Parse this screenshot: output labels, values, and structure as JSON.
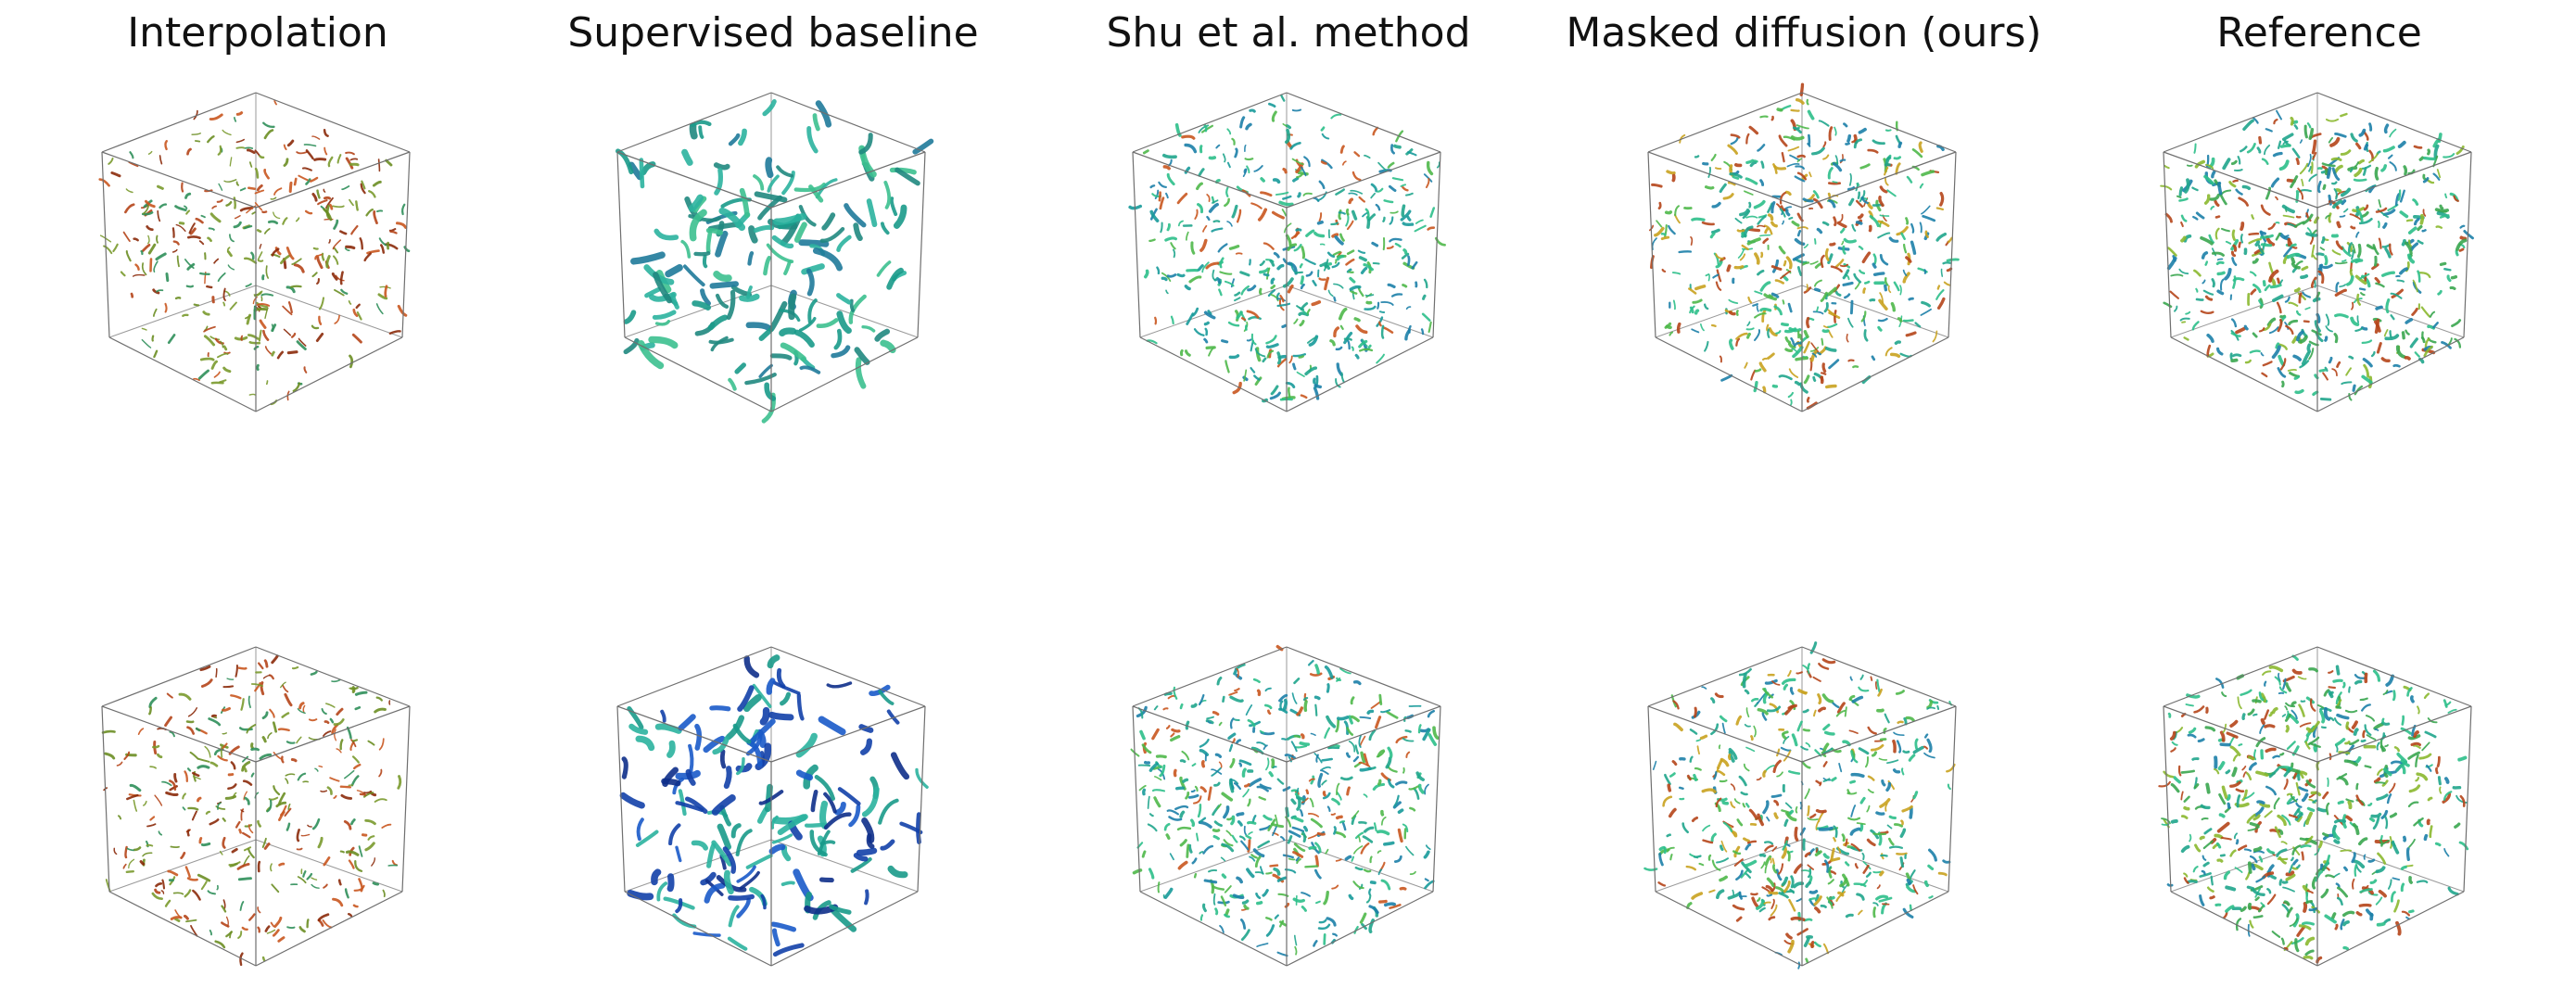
{
  "figure": {
    "columns": [
      {
        "id": "interpolation",
        "title": "Interpolation",
        "palette": [
          "#8b2a0a",
          "#b5451a",
          "#c9561f",
          "#7a9a2e",
          "#2f8f5a",
          "#6b8e23"
        ],
        "density": 0.55,
        "stroke": 2.2
      },
      {
        "id": "supervised",
        "title": "Supervised baseline",
        "palette": [
          "#1a9a8a",
          "#2bb39e",
          "#20887f",
          "#3cc08f",
          "#1f7a9a"
        ],
        "density": 0.28,
        "stroke": 5.5
      },
      {
        "id": "shu",
        "title": "Shu et al. method",
        "palette": [
          "#1fa58c",
          "#2cbf8a",
          "#179a9a",
          "#4fb84a",
          "#1c7fa8",
          "#c9561f"
        ],
        "density": 0.8,
        "stroke": 2.6
      },
      {
        "id": "masked",
        "title": "Masked diffusion (ours)",
        "palette": [
          "#1fa58c",
          "#2cbf8a",
          "#1c7fa8",
          "#4fb84a",
          "#b5451a",
          "#c9a21f"
        ],
        "density": 0.85,
        "stroke": 2.6
      },
      {
        "id": "reference",
        "title": "Reference",
        "palette": [
          "#1fa58c",
          "#2cbf8a",
          "#3aa64f",
          "#1c7fa8",
          "#b5451a",
          "#8bb82f"
        ],
        "density": 1.0,
        "stroke": 2.8
      }
    ],
    "rows": [
      {
        "id": "sample-1"
      },
      {
        "id": "sample-2",
        "supervised_palette": [
          "#1240a8",
          "#1a5ac9",
          "#0e2f8a",
          "#1a9a8a",
          "#2bb39e"
        ]
      }
    ]
  }
}
